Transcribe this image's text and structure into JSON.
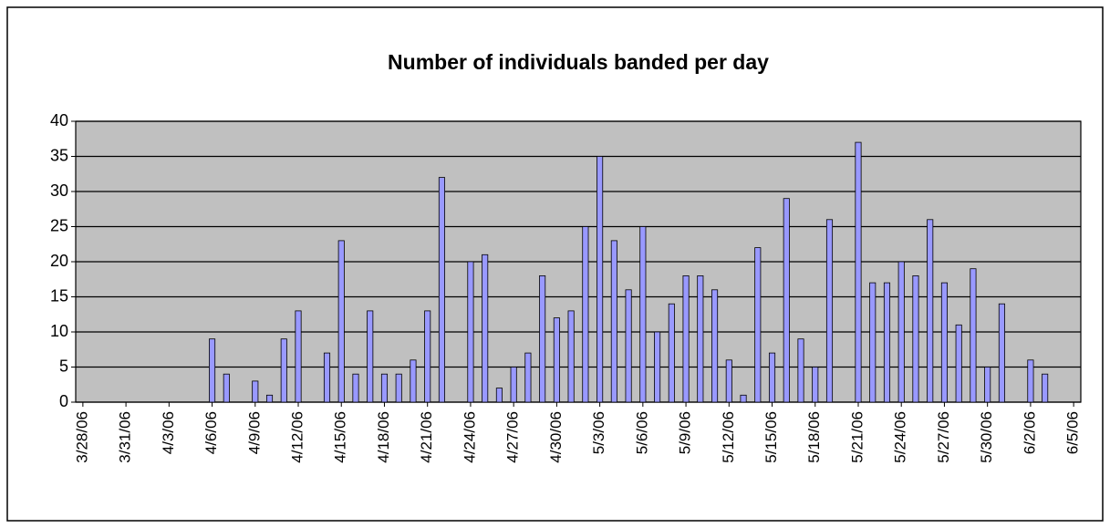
{
  "chart_data": {
    "type": "bar",
    "title": "Number of individuals banded per day",
    "categories": [
      "3/28/06",
      null,
      null,
      "3/31/06",
      null,
      null,
      "4/3/06",
      null,
      null,
      "4/6/06",
      null,
      null,
      "4/9/06",
      null,
      null,
      "4/12/06",
      null,
      null,
      "4/15/06",
      null,
      null,
      "4/18/06",
      null,
      null,
      "4/21/06",
      null,
      null,
      "4/24/06",
      null,
      null,
      "4/27/06",
      null,
      null,
      "4/30/06",
      null,
      null,
      "5/3/06",
      null,
      null,
      "5/6/06",
      null,
      null,
      "5/9/06",
      null,
      null,
      "5/12/06",
      null,
      null,
      "5/15/06",
      null,
      null,
      "5/18/06",
      null,
      null,
      "5/21/06",
      null,
      null,
      "5/24/06",
      null,
      null,
      "5/27/06",
      null,
      null,
      "5/30/06",
      null,
      null,
      "6/2/06",
      null,
      null,
      "6/5/06"
    ],
    "values": [
      0,
      0,
      0,
      0,
      0,
      0,
      0,
      0,
      0,
      9,
      4,
      0,
      3,
      1,
      9,
      13,
      0,
      7,
      23,
      4,
      13,
      4,
      4,
      6,
      13,
      32,
      0,
      20,
      21,
      2,
      5,
      7,
      18,
      12,
      13,
      25,
      35,
      23,
      16,
      25,
      10,
      14,
      18,
      18,
      16,
      6,
      1,
      22,
      7,
      29,
      9,
      5,
      26,
      0,
      37,
      17,
      17,
      20,
      18,
      26,
      17,
      11,
      19,
      5,
      14,
      0,
      6,
      4,
      0,
      0
    ],
    "color": "#9999ff",
    "plot_background": "#c0c0c0",
    "ylim": [
      0,
      40
    ],
    "yticks": [
      0,
      5,
      10,
      15,
      20,
      25,
      30,
      35,
      40
    ],
    "grid": true
  }
}
